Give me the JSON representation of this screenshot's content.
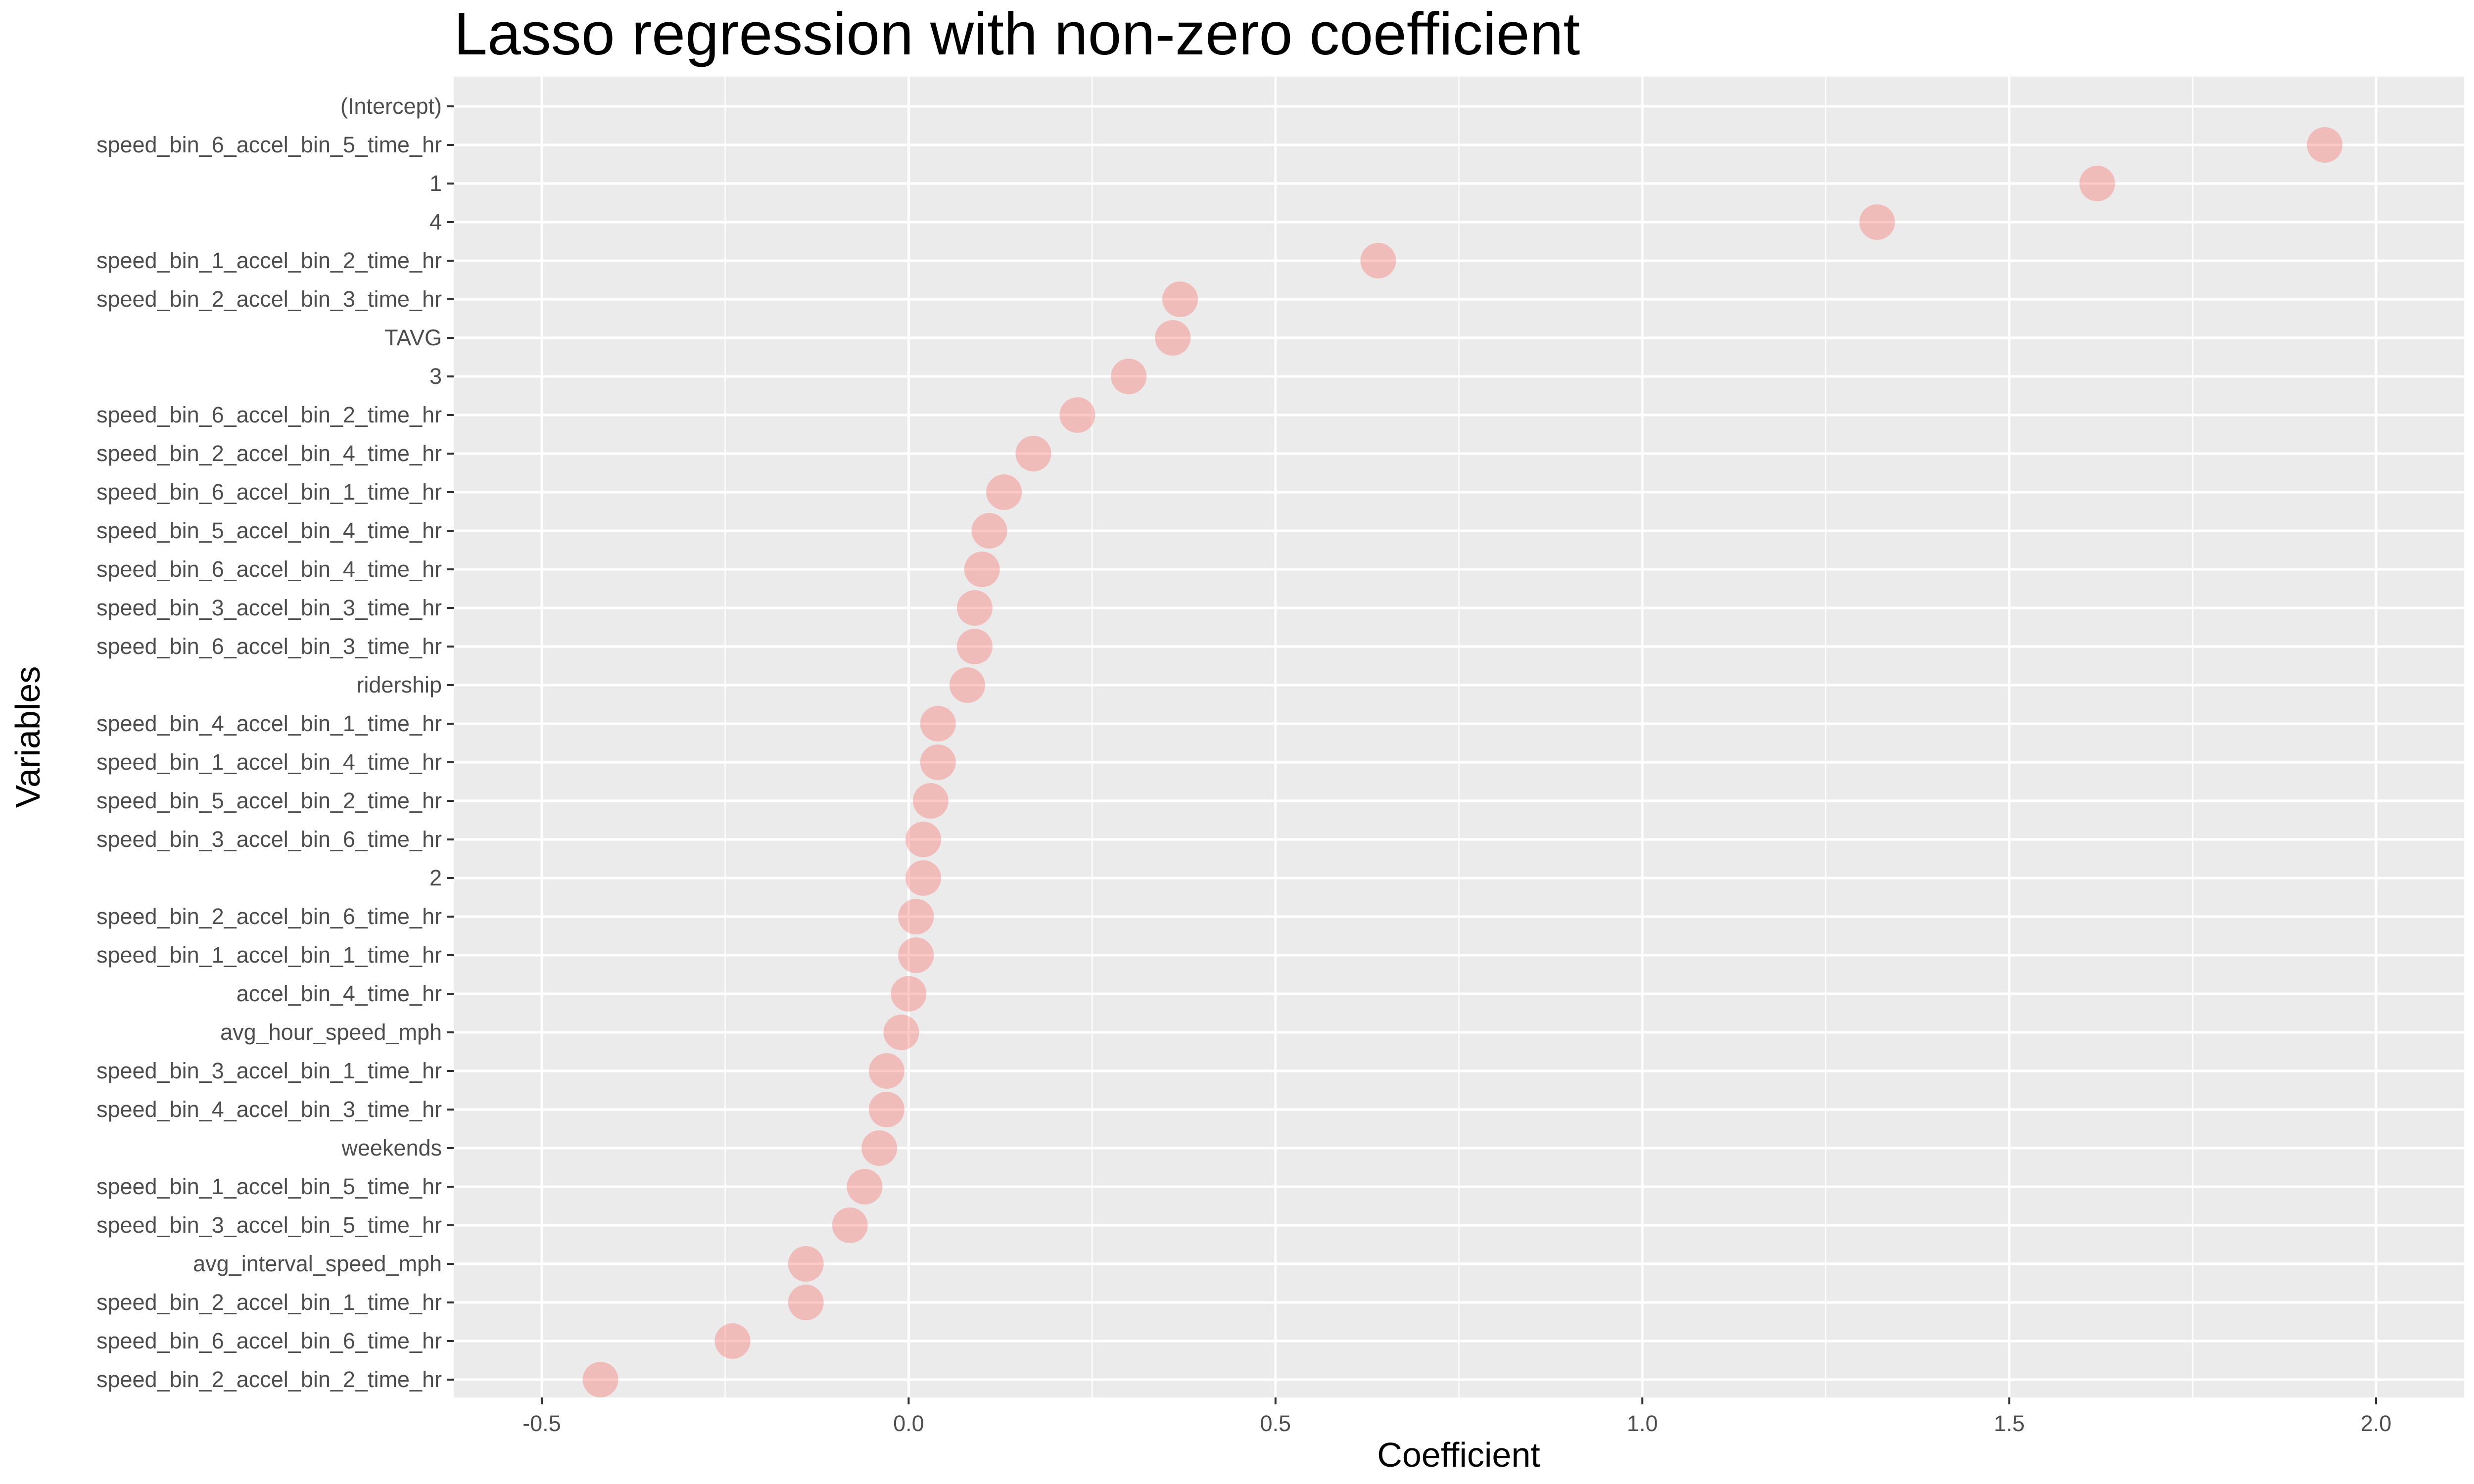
{
  "chart_data": {
    "type": "scatter",
    "title": "Lasso regression with non-zero coefficient",
    "xlabel": "Coefficient",
    "ylabel": "Variables",
    "xlim": [
      -0.62,
      2.12
    ],
    "x_ticks": [
      "-0.5",
      "0.0",
      "0.5",
      "1.0",
      "1.5",
      "2.0"
    ],
    "x_tick_values": [
      -0.5,
      0.0,
      0.5,
      1.0,
      1.5,
      2.0
    ],
    "grid": true,
    "legend": "none",
    "colors": {
      "panel_background": "#EBEBEB",
      "grid_major": "#FFFFFF",
      "point_fill": "#F8766D",
      "point_opacity": 0.4
    },
    "categories": [
      "(Intercept)",
      "speed_bin_6_accel_bin_5_time_hr",
      "1",
      "4",
      "speed_bin_1_accel_bin_2_time_hr",
      "speed_bin_2_accel_bin_3_time_hr",
      "TAVG",
      "3",
      "speed_bin_6_accel_bin_2_time_hr",
      "speed_bin_2_accel_bin_4_time_hr",
      "speed_bin_6_accel_bin_1_time_hr",
      "speed_bin_5_accel_bin_4_time_hr",
      "speed_bin_6_accel_bin_4_time_hr",
      "speed_bin_3_accel_bin_3_time_hr",
      "speed_bin_6_accel_bin_3_time_hr",
      "ridership",
      "speed_bin_4_accel_bin_1_time_hr",
      "speed_bin_1_accel_bin_4_time_hr",
      "speed_bin_5_accel_bin_2_time_hr",
      "speed_bin_3_accel_bin_6_time_hr",
      "2",
      "speed_bin_2_accel_bin_6_time_hr",
      "speed_bin_1_accel_bin_1_time_hr",
      "accel_bin_4_time_hr",
      "avg_hour_speed_mph",
      "speed_bin_3_accel_bin_1_time_hr",
      "speed_bin_4_accel_bin_3_time_hr",
      "weekends",
      "speed_bin_1_accel_bin_5_time_hr",
      "speed_bin_3_accel_bin_5_time_hr",
      "avg_interval_speed_mph",
      "speed_bin_2_accel_bin_1_time_hr",
      "speed_bin_6_accel_bin_6_time_hr",
      "speed_bin_2_accel_bin_2_time_hr"
    ],
    "values": [
      null,
      1.93,
      1.62,
      1.32,
      0.64,
      0.37,
      0.36,
      0.3,
      0.23,
      0.17,
      0.13,
      0.11,
      0.1,
      0.09,
      0.09,
      0.08,
      0.04,
      0.04,
      0.03,
      0.02,
      0.02,
      0.01,
      0.01,
      0.0,
      -0.01,
      -0.03,
      -0.03,
      -0.04,
      -0.06,
      -0.08,
      -0.14,
      -0.14,
      -0.24,
      -0.42
    ]
  }
}
